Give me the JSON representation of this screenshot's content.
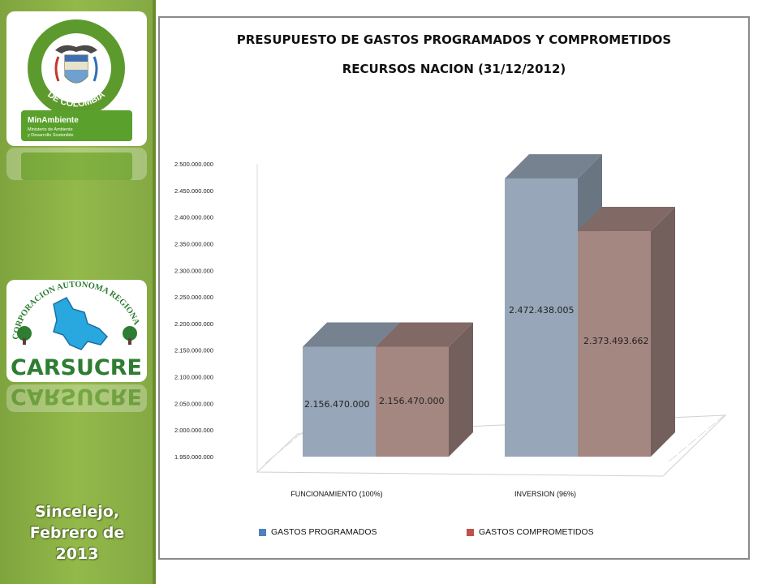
{
  "sidebar": {
    "logo_colombia_text_top": "REPÚBLICA",
    "logo_colombia_text_bottom": "DE COLOMBIA",
    "minambiente_title": "MinAmbiente",
    "minambiente_sub1": "Ministerio de Ambiente",
    "minambiente_sub2": "y Desarrollo Sostenible",
    "carsucre_arc_text": "CORPORACION AUTONOMA REGIONAL DE SUCRE",
    "carsucre_name": "CARSUCRE",
    "place_line1": "Sincelejo,",
    "place_line2": "Febrero de",
    "place_line3": "2013"
  },
  "colors": {
    "sidebar_green": "#8db446",
    "programados": "#97a7b9",
    "comprometidos": "#a58782",
    "legend_programados": "#4f81bd",
    "legend_comprometidos": "#c0504d"
  },
  "chart_data": {
    "type": "bar",
    "title": "PRESUPUESTO DE GASTOS PROGRAMADOS Y COMPROMETIDOS",
    "subtitle": "RECURSOS NACION (31/12/2012)",
    "categories": [
      "FUNCIONAMIENTO (100%)",
      "INVERSION (96%)"
    ],
    "series": [
      {
        "name": "GASTOS PROGRAMADOS",
        "values": [
          2156470000,
          2472438005
        ],
        "labels": [
          "2.156.470.000",
          "2.472.438.005"
        ]
      },
      {
        "name": "GASTOS COMPROMETIDOS",
        "values": [
          2156470000,
          2373493662
        ],
        "labels": [
          "2.156.470.000",
          "2.373.493.662"
        ]
      }
    ],
    "ylim": [
      1950000000,
      2500000000
    ],
    "yticks": [
      1950000000,
      2000000000,
      2050000000,
      2100000000,
      2150000000,
      2200000000,
      2250000000,
      2300000000,
      2350000000,
      2400000000,
      2450000000,
      2500000000
    ],
    "ytick_labels": [
      "1.950.000.000",
      "2.000.000.000",
      "2.050.000.000",
      "2.100.000.000",
      "2.150.000.000",
      "2.200.000.000",
      "2.250.000.000",
      "2.300.000.000",
      "2.350.000.000",
      "2.400.000.000",
      "2.450.000.000",
      "2.500.000.000"
    ],
    "style": "3d-column",
    "legend_position": "bottom",
    "grid": false
  }
}
